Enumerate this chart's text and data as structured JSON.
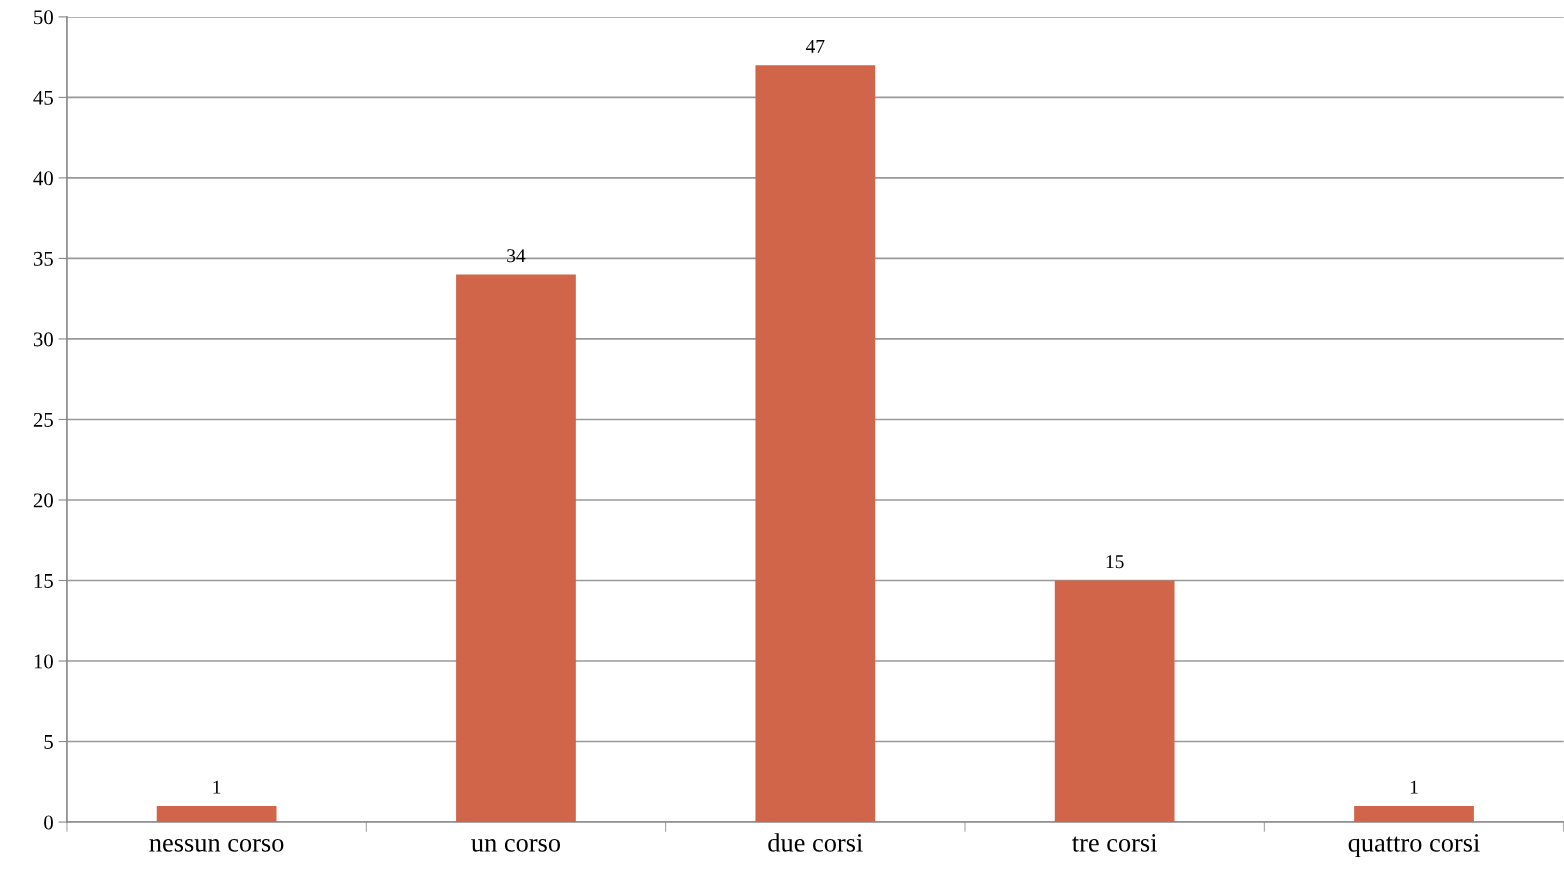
{
  "chart_data": {
    "type": "bar",
    "categories": [
      "nessun corso",
      "un corso",
      "due corsi",
      "tre corsi",
      "quattro corsi"
    ],
    "values": [
      1,
      34,
      47,
      15,
      1
    ],
    "color": "#d0654a",
    "ylim": [
      0,
      50
    ],
    "yticks": [
      0,
      5,
      10,
      15,
      20,
      25,
      30,
      35,
      40,
      45,
      50
    ],
    "grid": "y",
    "data_labels": true
  }
}
